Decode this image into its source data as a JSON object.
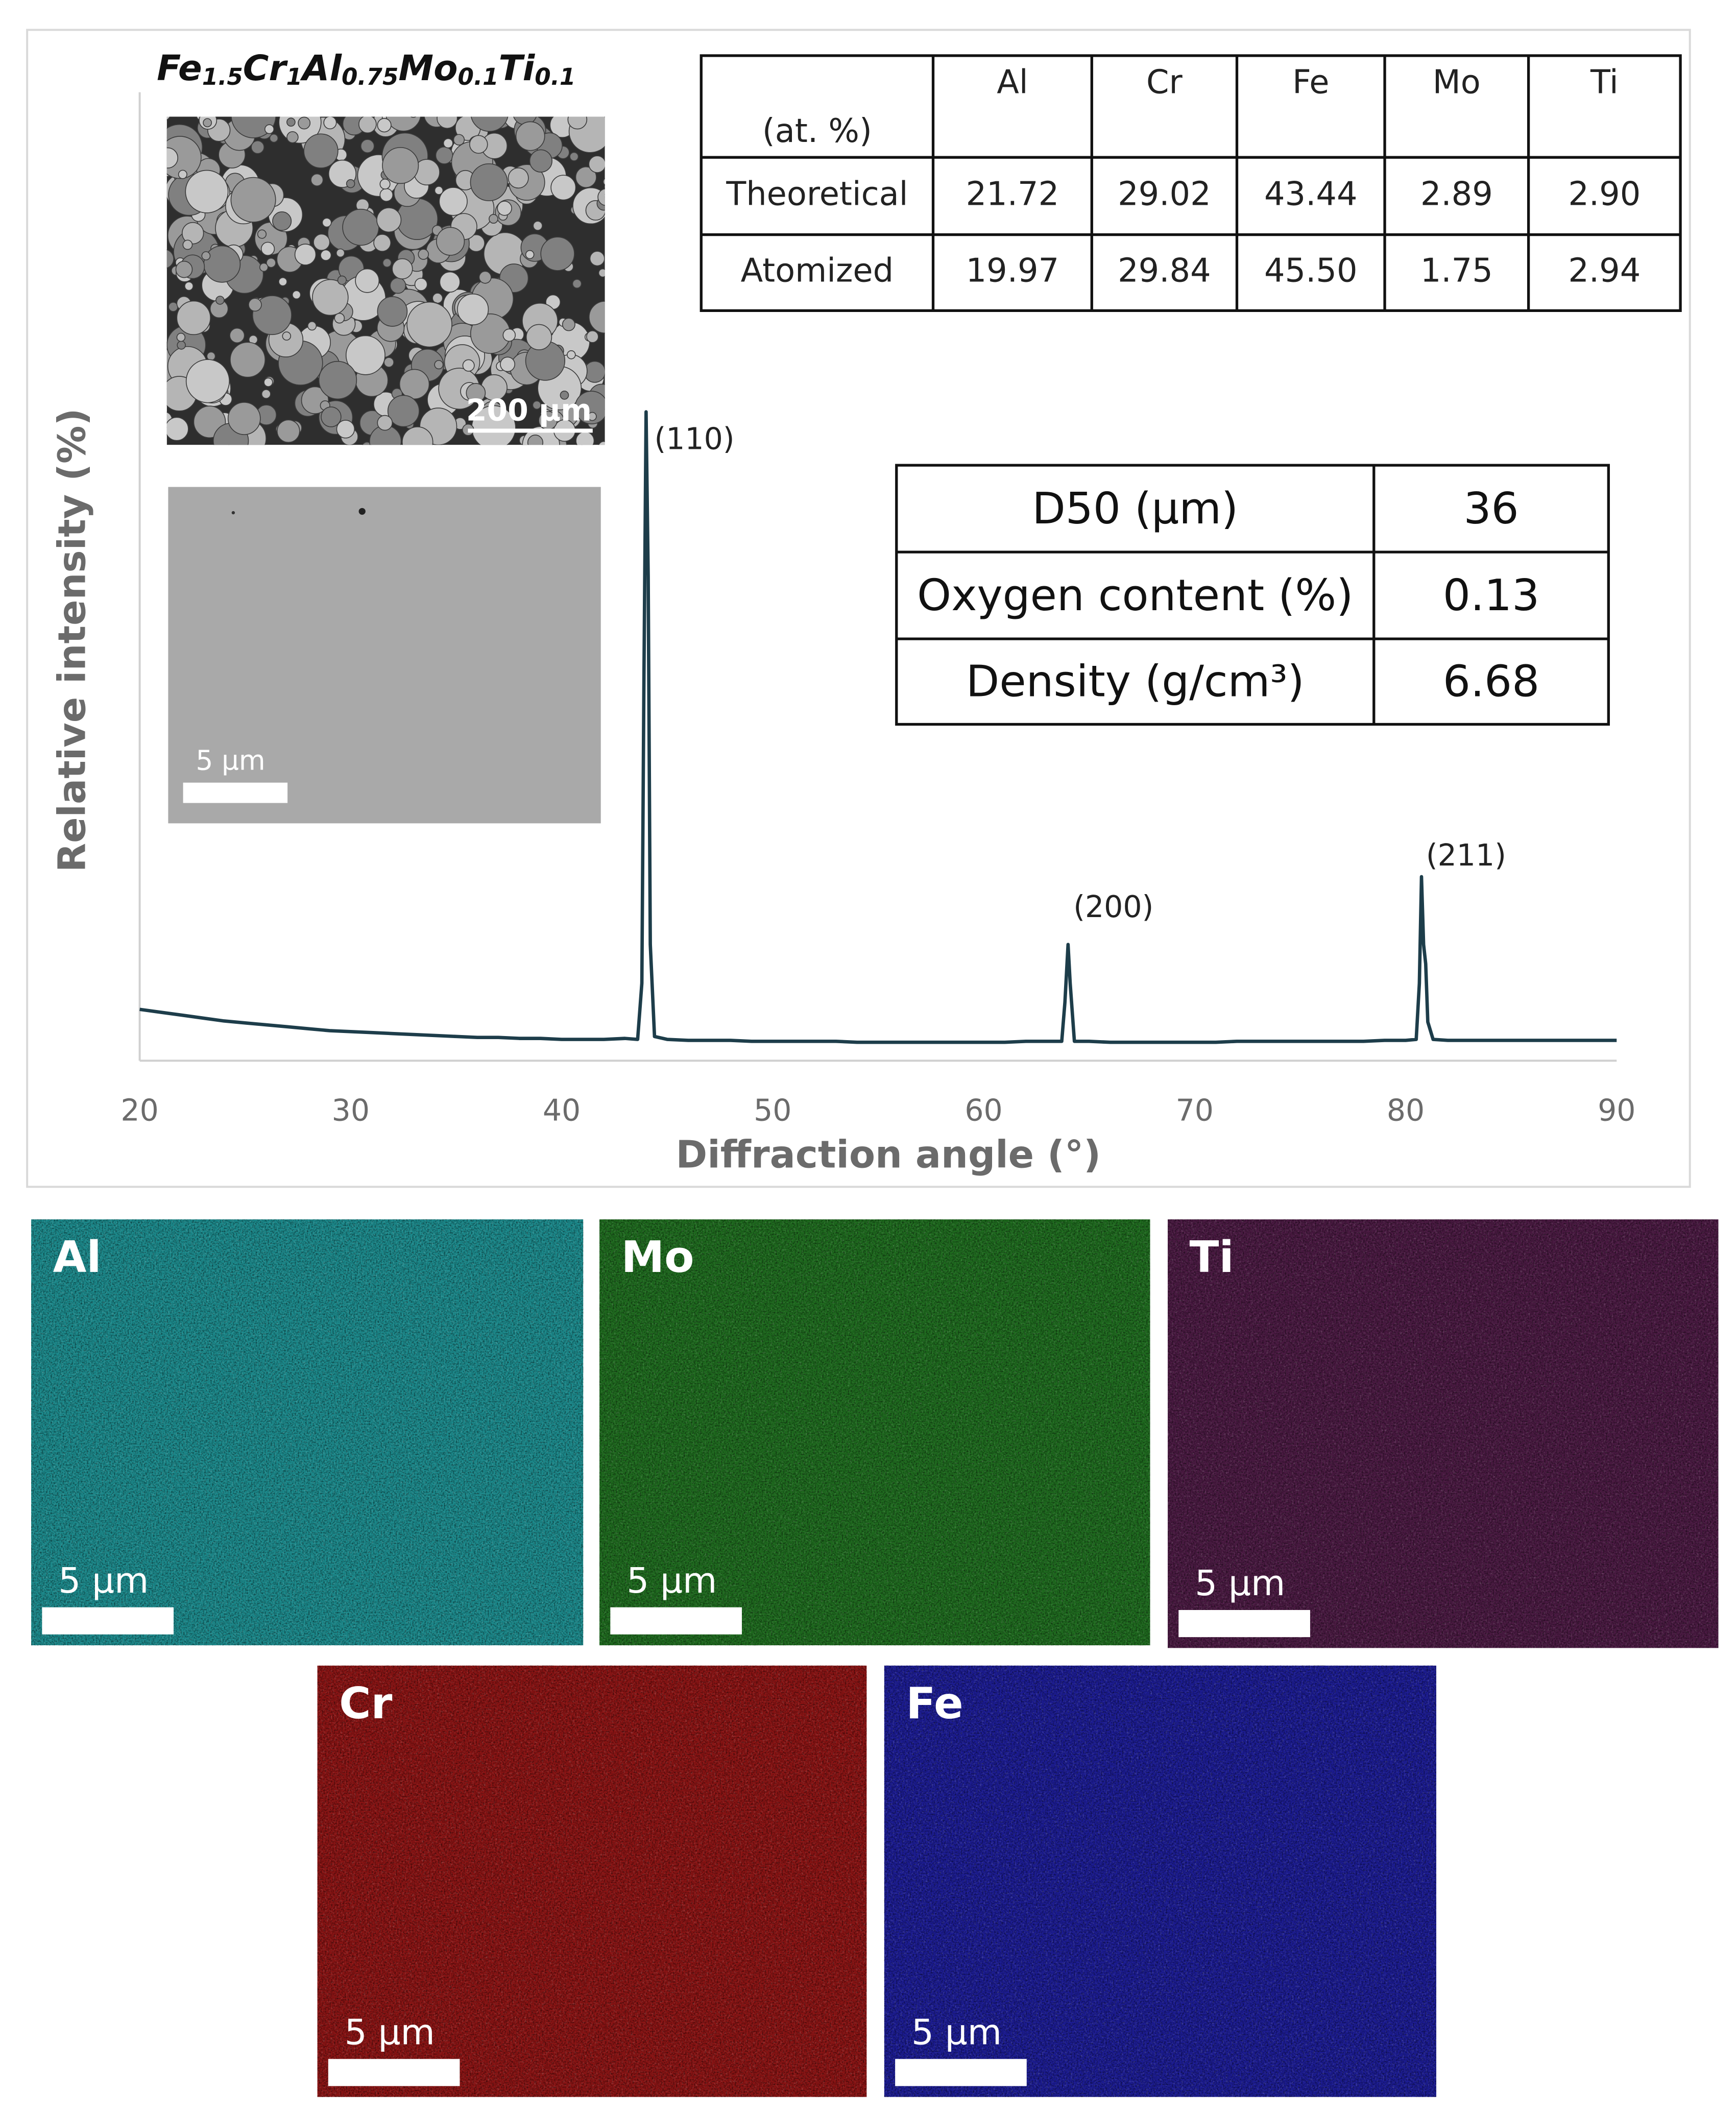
{
  "figure": {
    "formula": [
      {
        "element": "Fe",
        "subscript": "1.5"
      },
      {
        "element": "Cr",
        "subscript": "1"
      },
      {
        "element": "Al",
        "subscript": "0.75"
      },
      {
        "element": "Mo",
        "subscript": "0.1"
      },
      {
        "element": "Ti",
        "subscript": "0.1"
      }
    ],
    "sem_scale_bars": [
      "200 µm",
      "5 µm"
    ]
  },
  "chart_data": {
    "type": "line",
    "x_label": "Diffraction angle (°)",
    "y_label": "Relative intensity (%)",
    "x": [
      20,
      21,
      22,
      23,
      24,
      25,
      26,
      27,
      28,
      29,
      30,
      31,
      32,
      33,
      34,
      35,
      36,
      37,
      38,
      39,
      40,
      41,
      42,
      43,
      43.6,
      43.8,
      43.9,
      44.0,
      44.1,
      44.2,
      44.4,
      45,
      46,
      47,
      48,
      49,
      50,
      51,
      52,
      53,
      54,
      55,
      56,
      57,
      58,
      59,
      60,
      61,
      62,
      63,
      63.7,
      63.85,
      64.0,
      64.1,
      64.3,
      65,
      66,
      67,
      68,
      69,
      70,
      71,
      72,
      73,
      74,
      75,
      76,
      77,
      78,
      79,
      80,
      80.5,
      80.65,
      80.75,
      80.85,
      80.95,
      81.05,
      81.3,
      82,
      83,
      84,
      85,
      86,
      87,
      88,
      89,
      90
    ],
    "values": [
      5.3,
      5.0,
      4.7,
      4.4,
      4.1,
      3.9,
      3.7,
      3.5,
      3.3,
      3.1,
      3.0,
      2.9,
      2.8,
      2.7,
      2.6,
      2.5,
      2.4,
      2.4,
      2.3,
      2.3,
      2.2,
      2.2,
      2.2,
      2.3,
      2.2,
      8,
      40,
      67,
      50,
      12,
      2.5,
      2.2,
      2.1,
      2.1,
      2.1,
      2.0,
      2.0,
      2.0,
      2.0,
      2.0,
      1.9,
      1.9,
      1.9,
      1.9,
      1.9,
      1.9,
      1.9,
      1.9,
      2.0,
      2.0,
      2.0,
      6,
      12,
      8,
      2.0,
      2.0,
      1.9,
      1.9,
      1.9,
      1.9,
      1.9,
      1.9,
      2.0,
      2.0,
      2.0,
      2.0,
      2.0,
      2.0,
      2.0,
      2.1,
      2.1,
      2.2,
      8,
      19,
      12,
      10,
      4,
      2.2,
      2.1,
      2.1,
      2.1,
      2.1,
      2.1,
      2.1,
      2.1,
      2.1,
      2.1
    ],
    "color": "#1d3d4a",
    "annotations": [
      "(110)",
      "(200)",
      "(211)"
    ],
    "xlim": [
      20,
      90
    ],
    "xticks": [
      20,
      30,
      40,
      50,
      60,
      70,
      80,
      90
    ],
    "ylim": [
      0,
      100
    ],
    "grid": false
  },
  "composition_table": {
    "header": [
      "(at. %)",
      "Al",
      "Cr",
      "Fe",
      "Mo",
      "Ti"
    ],
    "rows": [
      [
        "Theoretical",
        "21.72",
        "29.02",
        "43.44",
        "2.89",
        "2.90"
      ],
      [
        "Atomized",
        "19.97",
        "29.84",
        "45.50",
        "1.75",
        "2.94"
      ]
    ]
  },
  "properties_table": {
    "rows": [
      [
        "D50 (µm)",
        "36"
      ],
      [
        "Oxygen content (%)",
        "0.13"
      ],
      [
        "Density (g/cm³)",
        "6.68"
      ]
    ]
  },
  "eds_maps": [
    {
      "element": "Al",
      "scale_bar": "5 µm"
    },
    {
      "element": "Mo",
      "scale_bar": "5 µm"
    },
    {
      "element": "Ti",
      "scale_bar": "5 µm"
    },
    {
      "element": "Cr",
      "scale_bar": "5 µm"
    },
    {
      "element": "Fe",
      "scale_bar": "5 µm"
    }
  ]
}
